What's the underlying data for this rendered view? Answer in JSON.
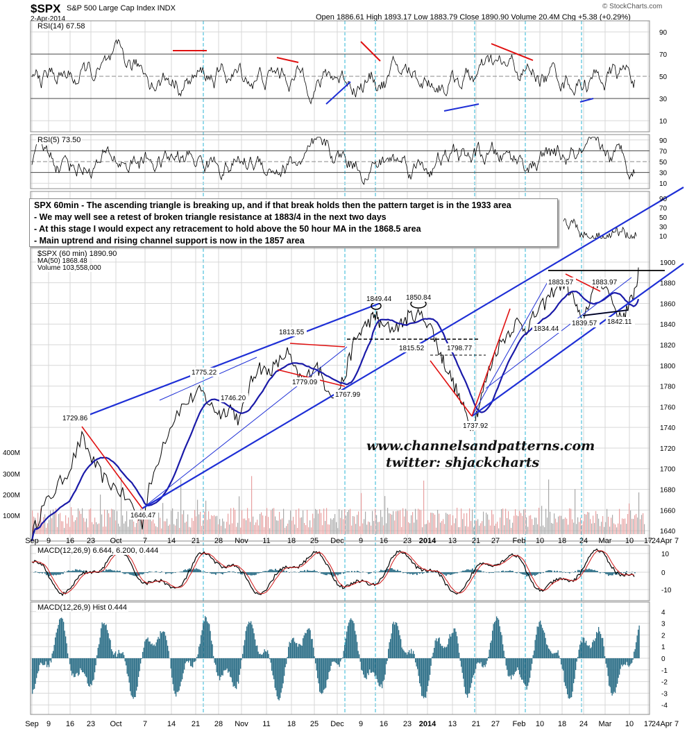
{
  "header": {
    "symbol": "$SPX",
    "name": "S&P 500 Large Cap Index INDX",
    "date": "2-Apr-2014",
    "ohlc": "Open 1886.61  High 1893.17  Low 1883.79  Close 1890.90  Volume 20.4M  Chg +5.38 (+0.29%)",
    "copyright": "© StockCharts.com"
  },
  "panels": {
    "rsi14_label": "RSI(14) 67.58",
    "rsi5_label": "RSI(5) 73.50",
    "price_label": "$SPX (60 min) 1890.90",
    "ma_label": "MA(50) 1868.48",
    "volume_label": "Volume 103,558,000",
    "macd_label": "MACD(12,26,9) 6.644, 6.200, 0.444",
    "hist_label": "MACD(12,26,9) Hist 0.444"
  },
  "annotation": {
    "lines": [
      "SPX 60min - The ascending triangle is breaking up, and if that break holds then the pattern target is in the 1933 area",
      "- We may well see a retest of broken triangle resistance at 1883/4 in the next two days",
      "- At this stage I would expect any retracement to hold above the 50 hour MA in the 1868.5 area",
      "- Main uptrend and rising channel support is now in the 1857 area"
    ]
  },
  "watermark": {
    "site": "www.channelsandpatterns.com",
    "twitter": "twitter: shjackcharts"
  },
  "colors": {
    "price": "#000000",
    "ma": "#1a1aa8",
    "trendline": "#1e2fd6",
    "red_line": "#e01010",
    "macd_fill": "#2a6d86",
    "volume_up": "#e8a0a0",
    "volume_down": "#a8a8a8",
    "grid": "#d7d7d7",
    "vline": "#29b6d6",
    "rsi_fill_high": "#5d6b5d",
    "rsi_fill_low": "#8b4a55"
  },
  "chart_data": {
    "type": "line",
    "x_ticks": [
      "Sep",
      "9",
      "16",
      "23",
      "Oct",
      "7",
      "14",
      "21",
      "28",
      "Nov",
      "11",
      "18",
      "25",
      "Dec",
      "9",
      "16",
      "23",
      "2014",
      "13",
      "21",
      "27",
      "Feb",
      "10",
      "18",
      "24",
      "Mar",
      "10",
      "17",
      "24",
      "Apr",
      "7"
    ],
    "price_axis": {
      "ticks": [
        1640,
        1660,
        1680,
        1700,
        1720,
        1740,
        1760,
        1780,
        1800,
        1820,
        1840,
        1860,
        1880,
        1900
      ],
      "ylim": [
        1630,
        1912
      ]
    },
    "volume_axis": {
      "ticks": [
        "100M",
        "200M",
        "300M",
        "400M"
      ]
    },
    "rsi14_axis": {
      "ticks": [
        10,
        30,
        50,
        70,
        90
      ]
    },
    "rsi5_axis": {
      "ticks": [
        10,
        30,
        50,
        70,
        90
      ]
    },
    "rsi_overlay_axis": {
      "ticks": [
        10,
        30,
        50,
        70,
        90
      ]
    },
    "macd_axis": {
      "ticks": [
        10,
        0,
        -10
      ]
    },
    "hist_axis": {
      "ticks": [
        4,
        3,
        2,
        1,
        0,
        -1,
        -2,
        -3,
        -4
      ]
    },
    "price_labels": [
      {
        "date": "Sep 18",
        "value": 1729.86,
        "text": "1729.86"
      },
      {
        "date": "Oct 9",
        "value": 1646.47,
        "text": "1646.47"
      },
      {
        "date": "Oct 23",
        "value": 1775.22,
        "text": "1775.22"
      },
      {
        "date": "Nov 7",
        "value": 1746.2,
        "text": "1746.20"
      },
      {
        "date": "Nov 27",
        "value": 1813.55,
        "text": "1813.55"
      },
      {
        "date": "Dec 9",
        "value": 1779.09,
        "text": "1779.09"
      },
      {
        "date": "Dec 16",
        "value": 1767.99,
        "text": "1767.99"
      },
      {
        "date": "Jan 6",
        "value": 1849.44,
        "text": "1849.44"
      },
      {
        "date": "Jan 15",
        "value": 1850.84,
        "text": "1850.84"
      },
      {
        "date": "Jan 13",
        "value": 1815.52,
        "text": "1815.52"
      },
      {
        "date": "Jan 30",
        "value": 1798.77,
        "text": "1798.77"
      },
      {
        "date": "Feb 5",
        "value": 1737.92,
        "text": "1737.92"
      },
      {
        "date": "Mar 7",
        "value": 1883.57,
        "text": "1883.57"
      },
      {
        "date": "Mar 3",
        "value": 1834.44,
        "text": "1834.44"
      },
      {
        "date": "Mar 14",
        "value": 1839.57,
        "text": "1839.57"
      },
      {
        "date": "Mar 21",
        "value": 1883.97,
        "text": "1883.97"
      },
      {
        "date": "Mar 27",
        "value": 1842.11,
        "text": "1842.11"
      }
    ]
  }
}
